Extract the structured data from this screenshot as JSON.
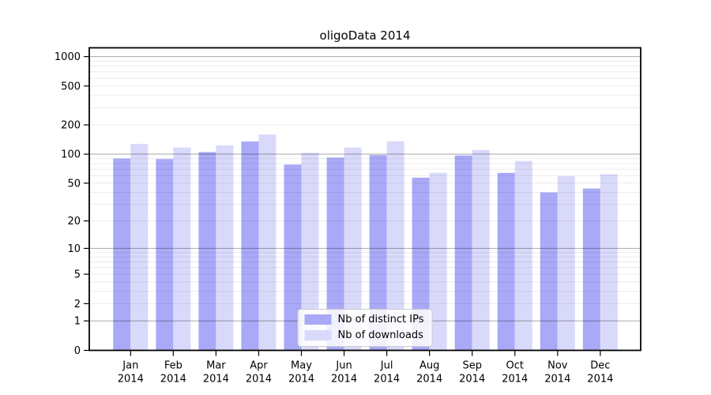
{
  "figure": {
    "title": "oligoData 2014"
  },
  "chart_data": {
    "type": "bar",
    "title": "oligoData 2014",
    "categories": [
      "Jan",
      "Feb",
      "Mar",
      "Apr",
      "May",
      "Jun",
      "Jul",
      "Aug",
      "Sep",
      "Oct",
      "Nov",
      "Dec"
    ],
    "category_year": "2014",
    "series": [
      {
        "name": "Nb of distinct IPs",
        "color": "#a9a9f7",
        "values": [
          90,
          89,
          105,
          135,
          78,
          92,
          98,
          57,
          97,
          64,
          40,
          44
        ]
      },
      {
        "name": "Nb of downloads",
        "color": "#d9d9fb",
        "values": [
          127,
          117,
          123,
          159,
          103,
          117,
          136,
          64,
          110,
          85,
          59,
          62
        ]
      }
    ],
    "xlabel": "",
    "ylabel": "",
    "yscale": "log1p",
    "yticks": [
      0,
      1,
      2,
      5,
      10,
      20,
      50,
      100,
      200,
      500,
      1000
    ],
    "ylim": [
      0,
      1230
    ],
    "grid": {
      "major_color": "rgba(0,0,0,0.30)",
      "minor_color": "rgba(0,0,0,0.08)"
    },
    "legend_position": "lower center"
  }
}
